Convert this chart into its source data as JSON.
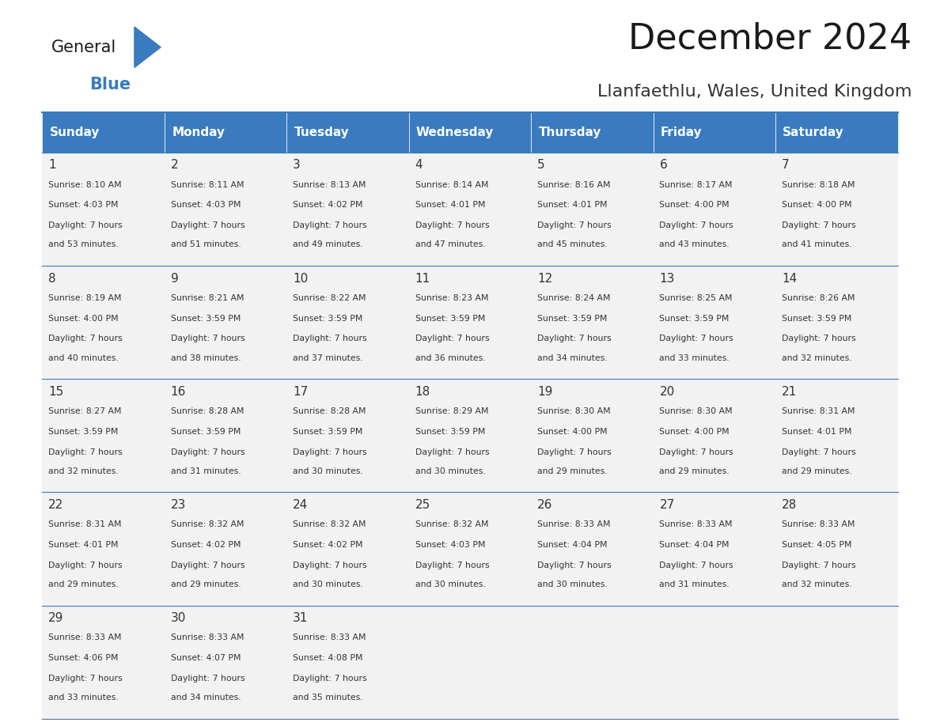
{
  "title": "December 2024",
  "subtitle": "Llanfaethlu, Wales, United Kingdom",
  "days_of_week": [
    "Sunday",
    "Monday",
    "Tuesday",
    "Wednesday",
    "Thursday",
    "Friday",
    "Saturday"
  ],
  "header_bg": "#3A7BBF",
  "header_text": "#FFFFFF",
  "cell_bg_light": "#F2F2F2",
  "cell_bg_white": "#FFFFFF",
  "border_color": "#3A7BBF",
  "text_color": "#333333",
  "title_color": "#1A1A1A",
  "subtitle_color": "#333333",
  "logo_general_color": "#1A1A1A",
  "logo_blue_color": "#3A7BBF",
  "calendar_data": [
    [
      {
        "day": 1,
        "sunrise": "8:10 AM",
        "sunset": "4:03 PM",
        "daylight": "7 hours and 53 minutes."
      },
      {
        "day": 2,
        "sunrise": "8:11 AM",
        "sunset": "4:03 PM",
        "daylight": "7 hours and 51 minutes."
      },
      {
        "day": 3,
        "sunrise": "8:13 AM",
        "sunset": "4:02 PM",
        "daylight": "7 hours and 49 minutes."
      },
      {
        "day": 4,
        "sunrise": "8:14 AM",
        "sunset": "4:01 PM",
        "daylight": "7 hours and 47 minutes."
      },
      {
        "day": 5,
        "sunrise": "8:16 AM",
        "sunset": "4:01 PM",
        "daylight": "7 hours and 45 minutes."
      },
      {
        "day": 6,
        "sunrise": "8:17 AM",
        "sunset": "4:00 PM",
        "daylight": "7 hours and 43 minutes."
      },
      {
        "day": 7,
        "sunrise": "8:18 AM",
        "sunset": "4:00 PM",
        "daylight": "7 hours and 41 minutes."
      }
    ],
    [
      {
        "day": 8,
        "sunrise": "8:19 AM",
        "sunset": "4:00 PM",
        "daylight": "7 hours and 40 minutes."
      },
      {
        "day": 9,
        "sunrise": "8:21 AM",
        "sunset": "3:59 PM",
        "daylight": "7 hours and 38 minutes."
      },
      {
        "day": 10,
        "sunrise": "8:22 AM",
        "sunset": "3:59 PM",
        "daylight": "7 hours and 37 minutes."
      },
      {
        "day": 11,
        "sunrise": "8:23 AM",
        "sunset": "3:59 PM",
        "daylight": "7 hours and 36 minutes."
      },
      {
        "day": 12,
        "sunrise": "8:24 AM",
        "sunset": "3:59 PM",
        "daylight": "7 hours and 34 minutes."
      },
      {
        "day": 13,
        "sunrise": "8:25 AM",
        "sunset": "3:59 PM",
        "daylight": "7 hours and 33 minutes."
      },
      {
        "day": 14,
        "sunrise": "8:26 AM",
        "sunset": "3:59 PM",
        "daylight": "7 hours and 32 minutes."
      }
    ],
    [
      {
        "day": 15,
        "sunrise": "8:27 AM",
        "sunset": "3:59 PM",
        "daylight": "7 hours and 32 minutes."
      },
      {
        "day": 16,
        "sunrise": "8:28 AM",
        "sunset": "3:59 PM",
        "daylight": "7 hours and 31 minutes."
      },
      {
        "day": 17,
        "sunrise": "8:28 AM",
        "sunset": "3:59 PM",
        "daylight": "7 hours and 30 minutes."
      },
      {
        "day": 18,
        "sunrise": "8:29 AM",
        "sunset": "3:59 PM",
        "daylight": "7 hours and 30 minutes."
      },
      {
        "day": 19,
        "sunrise": "8:30 AM",
        "sunset": "4:00 PM",
        "daylight": "7 hours and 29 minutes."
      },
      {
        "day": 20,
        "sunrise": "8:30 AM",
        "sunset": "4:00 PM",
        "daylight": "7 hours and 29 minutes."
      },
      {
        "day": 21,
        "sunrise": "8:31 AM",
        "sunset": "4:01 PM",
        "daylight": "7 hours and 29 minutes."
      }
    ],
    [
      {
        "day": 22,
        "sunrise": "8:31 AM",
        "sunset": "4:01 PM",
        "daylight": "7 hours and 29 minutes."
      },
      {
        "day": 23,
        "sunrise": "8:32 AM",
        "sunset": "4:02 PM",
        "daylight": "7 hours and 29 minutes."
      },
      {
        "day": 24,
        "sunrise": "8:32 AM",
        "sunset": "4:02 PM",
        "daylight": "7 hours and 30 minutes."
      },
      {
        "day": 25,
        "sunrise": "8:32 AM",
        "sunset": "4:03 PM",
        "daylight": "7 hours and 30 minutes."
      },
      {
        "day": 26,
        "sunrise": "8:33 AM",
        "sunset": "4:04 PM",
        "daylight": "7 hours and 30 minutes."
      },
      {
        "day": 27,
        "sunrise": "8:33 AM",
        "sunset": "4:04 PM",
        "daylight": "7 hours and 31 minutes."
      },
      {
        "day": 28,
        "sunrise": "8:33 AM",
        "sunset": "4:05 PM",
        "daylight": "7 hours and 32 minutes."
      }
    ],
    [
      {
        "day": 29,
        "sunrise": "8:33 AM",
        "sunset": "4:06 PM",
        "daylight": "7 hours and 33 minutes."
      },
      {
        "day": 30,
        "sunrise": "8:33 AM",
        "sunset": "4:07 PM",
        "daylight": "7 hours and 34 minutes."
      },
      {
        "day": 31,
        "sunrise": "8:33 AM",
        "sunset": "4:08 PM",
        "daylight": "7 hours and 35 minutes."
      },
      null,
      null,
      null,
      null
    ]
  ]
}
